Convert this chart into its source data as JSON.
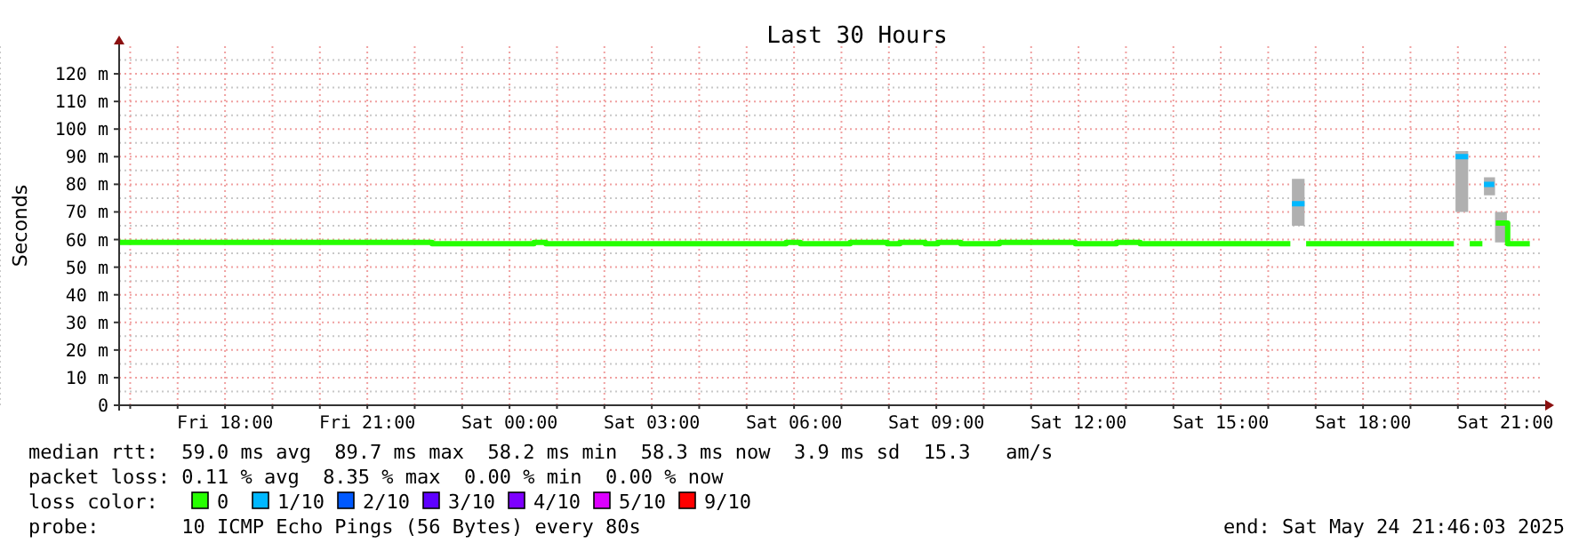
{
  "chart_data": {
    "type": "step",
    "title": "Last 30 Hours",
    "ylabel": "Seconds",
    "legend_title": "loss color:",
    "x": [
      "2025-05-23T15:47",
      "2025-05-23T22:21",
      "2025-05-23T22:23",
      "2025-05-24T00:30",
      "2025-05-24T00:32",
      "2025-05-24T00:45",
      "2025-05-24T00:47",
      "2025-05-24T05:49",
      "2025-05-24T05:51",
      "2025-05-24T06:07",
      "2025-05-24T06:09",
      "2025-05-24T07:10",
      "2025-05-24T07:12",
      "2025-05-24T07:57",
      "2025-05-24T07:59",
      "2025-05-24T08:13",
      "2025-05-24T08:15",
      "2025-05-24T08:45",
      "2025-05-24T08:47",
      "2025-05-24T09:01",
      "2025-05-24T09:03",
      "2025-05-24T09:30",
      "2025-05-24T09:32",
      "2025-05-24T10:19",
      "2025-05-24T10:21",
      "2025-05-24T11:55",
      "2025-05-24T11:57",
      "2025-05-24T12:47",
      "2025-05-24T12:49",
      "2025-05-24T13:17",
      "2025-05-24T13:19",
      "2025-05-24T16:28",
      "2025-05-24T16:30",
      "2025-05-24T16:46",
      "2025-05-24T16:48",
      "2025-05-24T19:55",
      "2025-05-24T19:57",
      "2025-05-24T20:13",
      "2025-05-24T20:15",
      "2025-05-24T20:31",
      "2025-05-24T20:33",
      "2025-05-24T20:46",
      "2025-05-24T20:48",
      "2025-05-24T21:02",
      "2025-05-24T21:04",
      "2025-05-24T21:31"
    ],
    "series": [
      {
        "name": "0",
        "color": "#26ff00",
        "values": [
          59,
          59,
          58.5,
          58.5,
          59,
          59,
          58.5,
          58.5,
          59,
          59,
          58.5,
          58.5,
          59,
          59,
          58.5,
          58.5,
          59,
          59,
          58.5,
          58.5,
          59,
          59,
          58.5,
          58.5,
          59,
          59,
          58.5,
          58.5,
          59,
          59,
          58.5,
          58.5,
          null,
          null,
          58.5,
          58.5,
          null,
          null,
          58.5,
          58.5,
          null,
          null,
          66,
          66,
          58.5,
          58.5
        ],
        "lower": [
          null,
          null,
          null,
          null,
          null,
          null,
          null,
          null,
          null,
          null,
          null,
          null,
          null,
          null,
          null,
          null,
          null,
          null,
          null,
          null,
          null,
          null,
          null,
          null,
          null,
          null,
          null,
          null,
          null,
          null,
          null,
          null,
          65,
          65,
          null,
          null,
          70,
          70,
          null,
          null,
          76,
          76,
          59,
          59,
          null,
          null
        ],
        "upper": [
          null,
          null,
          null,
          null,
          null,
          null,
          null,
          null,
          null,
          null,
          null,
          null,
          null,
          null,
          null,
          null,
          null,
          null,
          null,
          null,
          null,
          null,
          null,
          null,
          null,
          null,
          null,
          null,
          null,
          null,
          null,
          null,
          82,
          82,
          null,
          null,
          92,
          92,
          null,
          null,
          82.5,
          82.5,
          70,
          70,
          null,
          null
        ]
      },
      {
        "name": "1/10",
        "color": "#00b8ff",
        "values": [
          null,
          null,
          null,
          null,
          null,
          null,
          null,
          null,
          null,
          null,
          null,
          null,
          null,
          null,
          null,
          null,
          null,
          null,
          null,
          null,
          null,
          null,
          null,
          null,
          null,
          null,
          null,
          null,
          null,
          null,
          null,
          null,
          73,
          73,
          null,
          null,
          90,
          90,
          null,
          null,
          80,
          80,
          null,
          null,
          null,
          null
        ]
      },
      {
        "name": "2/10",
        "color": "#0059ff",
        "values": [
          null,
          null,
          null,
          null,
          null,
          null,
          null,
          null,
          null,
          null,
          null,
          null,
          null,
          null,
          null,
          null,
          null,
          null,
          null,
          null,
          null,
          null,
          null,
          null,
          null,
          null,
          null,
          null,
          null,
          null,
          null,
          null,
          null,
          null,
          null,
          null,
          null,
          null,
          null,
          null,
          null,
          null,
          null,
          null,
          null,
          null
        ]
      },
      {
        "name": "3/10",
        "color": "#5e00ff",
        "values": [
          null,
          null,
          null,
          null,
          null,
          null,
          null,
          null,
          null,
          null,
          null,
          null,
          null,
          null,
          null,
          null,
          null,
          null,
          null,
          null,
          null,
          null,
          null,
          null,
          null,
          null,
          null,
          null,
          null,
          null,
          null,
          null,
          null,
          null,
          null,
          null,
          null,
          null,
          null,
          null,
          null,
          null,
          null,
          null,
          null,
          null
        ]
      },
      {
        "name": "4/10",
        "color": "#7e00ff",
        "values": [
          null,
          null,
          null,
          null,
          null,
          null,
          null,
          null,
          null,
          null,
          null,
          null,
          null,
          null,
          null,
          null,
          null,
          null,
          null,
          null,
          null,
          null,
          null,
          null,
          null,
          null,
          null,
          null,
          null,
          null,
          null,
          null,
          null,
          null,
          null,
          null,
          null,
          null,
          null,
          null,
          null,
          null,
          null,
          null,
          null,
          null
        ]
      },
      {
        "name": "5/10",
        "color": "#dd00ff",
        "values": [
          null,
          null,
          null,
          null,
          null,
          null,
          null,
          null,
          null,
          null,
          null,
          null,
          null,
          null,
          null,
          null,
          null,
          null,
          null,
          null,
          null,
          null,
          null,
          null,
          null,
          null,
          null,
          null,
          null,
          null,
          null,
          null,
          null,
          null,
          null,
          null,
          null,
          null,
          null,
          null,
          null,
          null,
          null,
          null,
          null,
          null
        ]
      },
      {
        "name": "9/10",
        "color": "#ff0000",
        "values": [
          null,
          null,
          null,
          null,
          null,
          null,
          null,
          null,
          null,
          null,
          null,
          null,
          null,
          null,
          null,
          null,
          null,
          null,
          null,
          null,
          null,
          null,
          null,
          null,
          null,
          null,
          null,
          null,
          null,
          null,
          null,
          null,
          null,
          null,
          null,
          null,
          null,
          null,
          null,
          null,
          null,
          null,
          null,
          null,
          null,
          null
        ]
      }
    ],
    "xlim": [
      "2025-05-23T15:46",
      "2025-05-24T21:46"
    ],
    "ylim": [
      0,
      130
    ],
    "xticks": [
      {
        "value": "2025-05-23T16:00",
        "label": null
      },
      {
        "value": "2025-05-23T17:00",
        "label": null
      },
      {
        "value": "2025-05-23T18:00",
        "label": "Fri 18:00"
      },
      {
        "value": "2025-05-23T19:00",
        "label": null
      },
      {
        "value": "2025-05-23T20:00",
        "label": null
      },
      {
        "value": "2025-05-23T21:00",
        "label": "Fri 21:00"
      },
      {
        "value": "2025-05-23T22:00",
        "label": null
      },
      {
        "value": "2025-05-23T23:00",
        "label": null
      },
      {
        "value": "2025-05-24T00:00",
        "label": "Sat 00:00"
      },
      {
        "value": "2025-05-24T01:00",
        "label": null
      },
      {
        "value": "2025-05-24T02:00",
        "label": null
      },
      {
        "value": "2025-05-24T03:00",
        "label": "Sat 03:00"
      },
      {
        "value": "2025-05-24T04:00",
        "label": null
      },
      {
        "value": "2025-05-24T05:00",
        "label": null
      },
      {
        "value": "2025-05-24T06:00",
        "label": "Sat 06:00"
      },
      {
        "value": "2025-05-24T07:00",
        "label": null
      },
      {
        "value": "2025-05-24T08:00",
        "label": null
      },
      {
        "value": "2025-05-24T09:00",
        "label": "Sat 09:00"
      },
      {
        "value": "2025-05-24T10:00",
        "label": null
      },
      {
        "value": "2025-05-24T11:00",
        "label": null
      },
      {
        "value": "2025-05-24T12:00",
        "label": "Sat 12:00"
      },
      {
        "value": "2025-05-24T13:00",
        "label": null
      },
      {
        "value": "2025-05-24T14:00",
        "label": null
      },
      {
        "value": "2025-05-24T15:00",
        "label": "Sat 15:00"
      },
      {
        "value": "2025-05-24T16:00",
        "label": null
      },
      {
        "value": "2025-05-24T17:00",
        "label": null
      },
      {
        "value": "2025-05-24T18:00",
        "label": "Sat 18:00"
      },
      {
        "value": "2025-05-24T19:00",
        "label": null
      },
      {
        "value": "2025-05-24T20:00",
        "label": null
      },
      {
        "value": "2025-05-24T21:00",
        "label": "Sat 21:00"
      }
    ],
    "yticks": [
      0,
      {
        "value": 10,
        "label": "10 m"
      },
      {
        "value": 20,
        "label": "20 m"
      },
      {
        "value": 30,
        "label": "30 m"
      },
      {
        "value": 40,
        "label": "40 m"
      },
      {
        "value": 50,
        "label": "50 m"
      },
      {
        "value": 60,
        "label": "60 m"
      },
      {
        "value": 70,
        "label": "70 m"
      },
      {
        "value": 80,
        "label": "80 m"
      },
      {
        "value": 90,
        "label": "90 m"
      },
      {
        "value": 100,
        "label": "100 m"
      },
      {
        "value": 110,
        "label": "110 m"
      },
      {
        "value": 120,
        "label": "120 m"
      }
    ],
    "grid": true,
    "legend": "bottom",
    "line_style": "solid",
    "annotations": [
      "median rtt:  59.0 ms avg  89.7 ms max  58.2 ms min  58.3 ms now  3.9 ms sd  15.3   am/s",
      "packet loss: 0.11 % avg  8.35 % max  0.00 % min  0.00 % now",
      "probe:       10 ICMP Echo Pings (56 Bytes) every 80s",
      "end: Sat May 24 21:46:03 2025"
    ]
  }
}
